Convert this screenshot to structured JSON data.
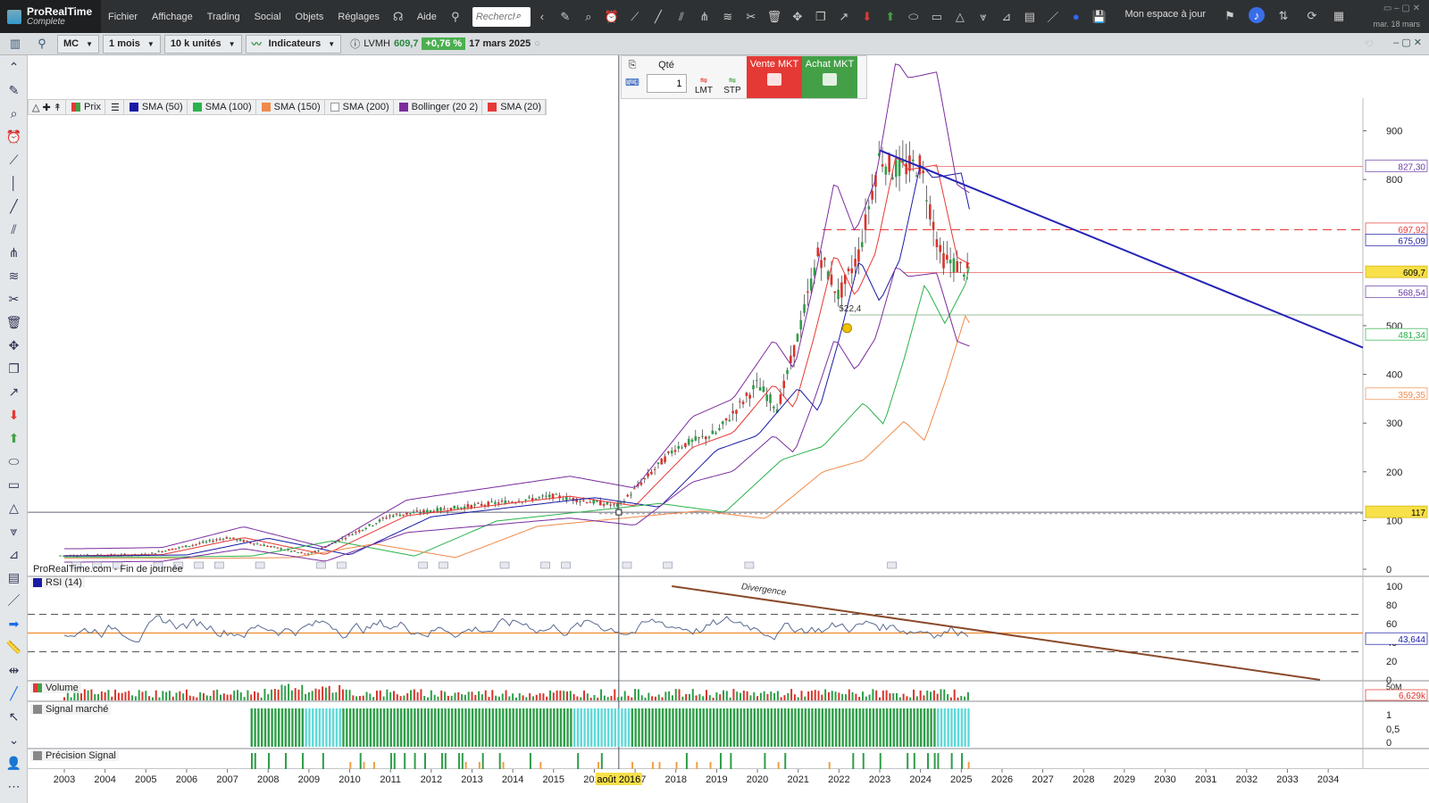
{
  "app": {
    "brand": "ProRealTime",
    "edition": "Complete"
  },
  "menu": [
    "Fichier",
    "Affichage",
    "Trading",
    "Social",
    "Objets",
    "Réglages"
  ],
  "help": "Aide",
  "search": {
    "placeholder": "Recherche"
  },
  "workspace": "Mon espace à jour",
  "clock": "mar. 18 mars",
  "toolbar2": {
    "ticker": "MC",
    "period": "1 mois",
    "units": "10 k unités",
    "indicators": "Indicateurs",
    "instrument": "LVMH",
    "price": "609,7",
    "change": "+0,76 %",
    "date": "17 mars 2025"
  },
  "order": {
    "qty_label": "Qté",
    "qty": "1",
    "lmt": "LMT",
    "stp": "STP",
    "sell": "Vente MKT",
    "buy": "Achat MKT"
  },
  "colors": {
    "sell": "#e53935",
    "buy": "#43a047",
    "sma50": "#1a1aa6",
    "sma100": "#2bb24c",
    "sma150": "#f08a4b",
    "bollinger": "#7b2d9e",
    "sma20": "#e53935",
    "trendline": "#2525b5",
    "rsi_trend": "#8b4a2b"
  },
  "legend": [
    {
      "name": "Prix",
      "color": "#43a047"
    },
    {
      "name": "SMA (50)",
      "color": "#1a1aa6"
    },
    {
      "name": "SMA (100)",
      "color": "#2bb24c"
    },
    {
      "name": "SMA (150)",
      "color": "#f08a4b"
    },
    {
      "name": "SMA (200)",
      "color": "#ffffff"
    },
    {
      "name": "Bollinger (20 2)",
      "color": "#7b2d9e"
    },
    {
      "name": "SMA (20)",
      "color": "#e53935"
    }
  ],
  "footer_note": "ProRealTime.com - Fin de journée",
  "annotations": {
    "level_label": "522,4",
    "divergence": "Divergence"
  },
  "cursor_date": "août 2016",
  "panels": {
    "rsi": "RSI (14)",
    "volume": "Volume",
    "signal": "Signal marché",
    "precision": "Précision Signal"
  },
  "price_axis": {
    "ticks": [
      "900",
      "800",
      "500",
      "400",
      "300",
      "200",
      "100",
      "0"
    ]
  },
  "price_tags": [
    {
      "value": "827,30",
      "color": "#6a3aa6"
    },
    {
      "value": "697,92",
      "color": "#e53935"
    },
    {
      "value": "675,09",
      "color": "#1a1aa6"
    },
    {
      "value": "609,7",
      "color": "#d4b000"
    },
    {
      "value": "568,54",
      "color": "#6a3aa6"
    },
    {
      "value": "481,34",
      "color": "#2bb24c"
    },
    {
      "value": "359,35",
      "color": "#f08a4b"
    },
    {
      "value": "117",
      "color": "#d4b000"
    }
  ],
  "rsi_axis": {
    "ticks": [
      "100",
      "80",
      "60",
      "40",
      "20",
      "0"
    ],
    "value": "43,644"
  },
  "volume_axis": {
    "ticks": [
      "50M"
    ],
    "value": "6,629k"
  },
  "signal_axis": {
    "ticks": [
      "1",
      "0,5",
      "0"
    ]
  },
  "years": [
    "2003",
    "2004",
    "2005",
    "2006",
    "2007",
    "2008",
    "2009",
    "2010",
    "2011",
    "2012",
    "2013",
    "2014",
    "2015",
    "2016",
    "2017",
    "2018",
    "2019",
    "2020",
    "2021",
    "2022",
    "2023",
    "2024",
    "2025",
    "2026",
    "2027",
    "2028",
    "2029",
    "2030",
    "2031",
    "2032",
    "2033",
    "2034"
  ],
  "chart_data": {
    "type": "line",
    "title": "LVMH",
    "x": [
      2003,
      2005,
      2007,
      2009,
      2011,
      2013,
      2015,
      2016.6,
      2018,
      2019,
      2020,
      2020.5,
      2021,
      2021.5,
      2022,
      2022.5,
      2023,
      2023.3,
      2024,
      2024.5,
      2025.2
    ],
    "series": [
      {
        "name": "Prix",
        "values": [
          28,
          30,
          65,
          30,
          110,
          130,
          150,
          130,
          250,
          280,
          380,
          330,
          480,
          650,
          560,
          650,
          850,
          820,
          830,
          640,
          609.7
        ]
      }
    ],
    "ylim": [
      0,
      950
    ]
  }
}
